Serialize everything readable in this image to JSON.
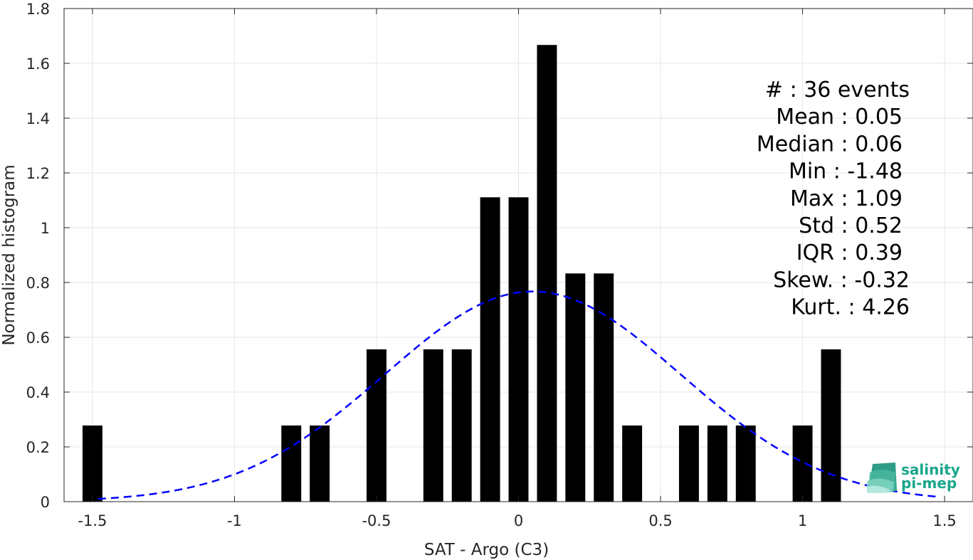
{
  "chart_data": {
    "type": "bar",
    "xlabel": "SAT - Argo (C3)",
    "ylabel": "Normalized histogram",
    "xlim": [
      -1.6,
      1.6
    ],
    "ylim": [
      0,
      1.8
    ],
    "grid": true,
    "bar_width": 0.07,
    "xticks": [
      -1.5,
      -1,
      -0.5,
      0,
      0.5,
      1,
      1.5
    ],
    "xtick_labels": [
      "-1.5",
      "-1",
      "-0.5",
      "0",
      "0.5",
      "1",
      "1.5"
    ],
    "yticks": [
      0,
      0.2,
      0.4,
      0.6,
      0.8,
      1,
      1.2,
      1.4,
      1.6,
      1.8
    ],
    "ytick_labels": [
      "0",
      "0.2",
      "0.4",
      "0.6",
      "0.8",
      "1",
      "1.2",
      "1.4",
      "1.6",
      "1.8"
    ],
    "bars": [
      {
        "x": -1.5,
        "y": 0.278
      },
      {
        "x": -0.8,
        "y": 0.278
      },
      {
        "x": -0.7,
        "y": 0.278
      },
      {
        "x": -0.5,
        "y": 0.556
      },
      {
        "x": -0.3,
        "y": 0.556
      },
      {
        "x": -0.2,
        "y": 0.556
      },
      {
        "x": -0.1,
        "y": 1.111
      },
      {
        "x": 0.0,
        "y": 1.111
      },
      {
        "x": 0.1,
        "y": 1.667
      },
      {
        "x": 0.2,
        "y": 0.833
      },
      {
        "x": 0.3,
        "y": 0.833
      },
      {
        "x": 0.4,
        "y": 0.278
      },
      {
        "x": 0.6,
        "y": 0.278
      },
      {
        "x": 0.7,
        "y": 0.278
      },
      {
        "x": 0.8,
        "y": 0.278
      },
      {
        "x": 1.0,
        "y": 0.278
      },
      {
        "x": 1.1,
        "y": 0.556
      }
    ],
    "fit_curve": {
      "type": "gaussian",
      "mean": 0.05,
      "std": 0.52,
      "x_range": [
        -1.48,
        1.48
      ],
      "color": "#0000ff",
      "dash": true
    },
    "annotations": [
      "#  : 36 events",
      "Mean : 0.05",
      "Median : 0.06",
      "Min : -1.48",
      "Max : 1.09",
      "Std : 0.52",
      "IQR : 0.39",
      "Skew. : -0.32",
      "Kurt. : 4.26"
    ],
    "bar_color": "#000000"
  },
  "logo": {
    "line1": "salinity",
    "line2": "pi-mep"
  }
}
